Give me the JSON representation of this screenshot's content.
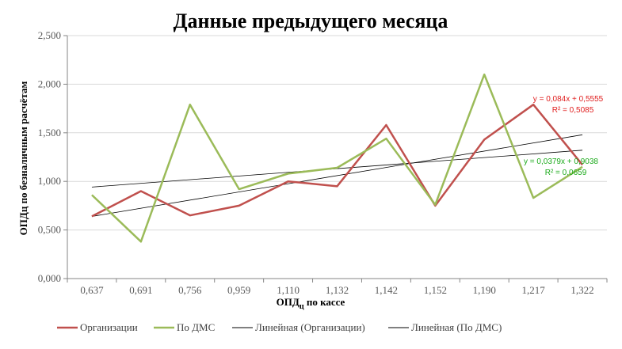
{
  "chart_data": {
    "type": "line",
    "title": "Данные предыдущего месяца",
    "xlabel_main": "ОПД",
    "xlabel_sub": "ц",
    "xlabel_rest": " по кассе",
    "ylabel": "ОПДц по безналичным расчётам",
    "categories": [
      "0,637",
      "0,691",
      "0,756",
      "0,959",
      "1,110",
      "1,132",
      "1,142",
      "1,152",
      "1,190",
      "1,217",
      "1,322"
    ],
    "yticks": [
      "0,000",
      "0,500",
      "1,000",
      "1,500",
      "2,000",
      "2,500"
    ],
    "ylim": [
      0,
      2.5
    ],
    "grid": true,
    "legend_position": "bottom",
    "series": [
      {
        "name": "Организации",
        "color": "#c0504d",
        "values": [
          0.64,
          0.9,
          0.65,
          0.75,
          1.0,
          0.95,
          1.58,
          0.75,
          1.43,
          1.79,
          1.17
        ]
      },
      {
        "name": "По ДМС",
        "color": "#9bbb59",
        "values": [
          0.86,
          0.38,
          1.79,
          0.92,
          1.08,
          1.14,
          1.44,
          0.76,
          2.1,
          0.83,
          1.15
        ]
      }
    ],
    "trendlines": [
      {
        "name": "Линейная (Организации)",
        "color": "#000000",
        "slope": 0.084,
        "intercept": 0.5555,
        "equation": "y = 0,084x + 0,5555",
        "r2": "R² = 0,5085",
        "label_color": "#e02020"
      },
      {
        "name": "Линейная (По ДМС)",
        "color": "#000000",
        "slope": 0.0379,
        "intercept": 0.9038,
        "equation": "y = 0,0379x + 0,9038",
        "r2": "R² = 0,0659",
        "label_color": "#1aaa1a"
      }
    ]
  }
}
